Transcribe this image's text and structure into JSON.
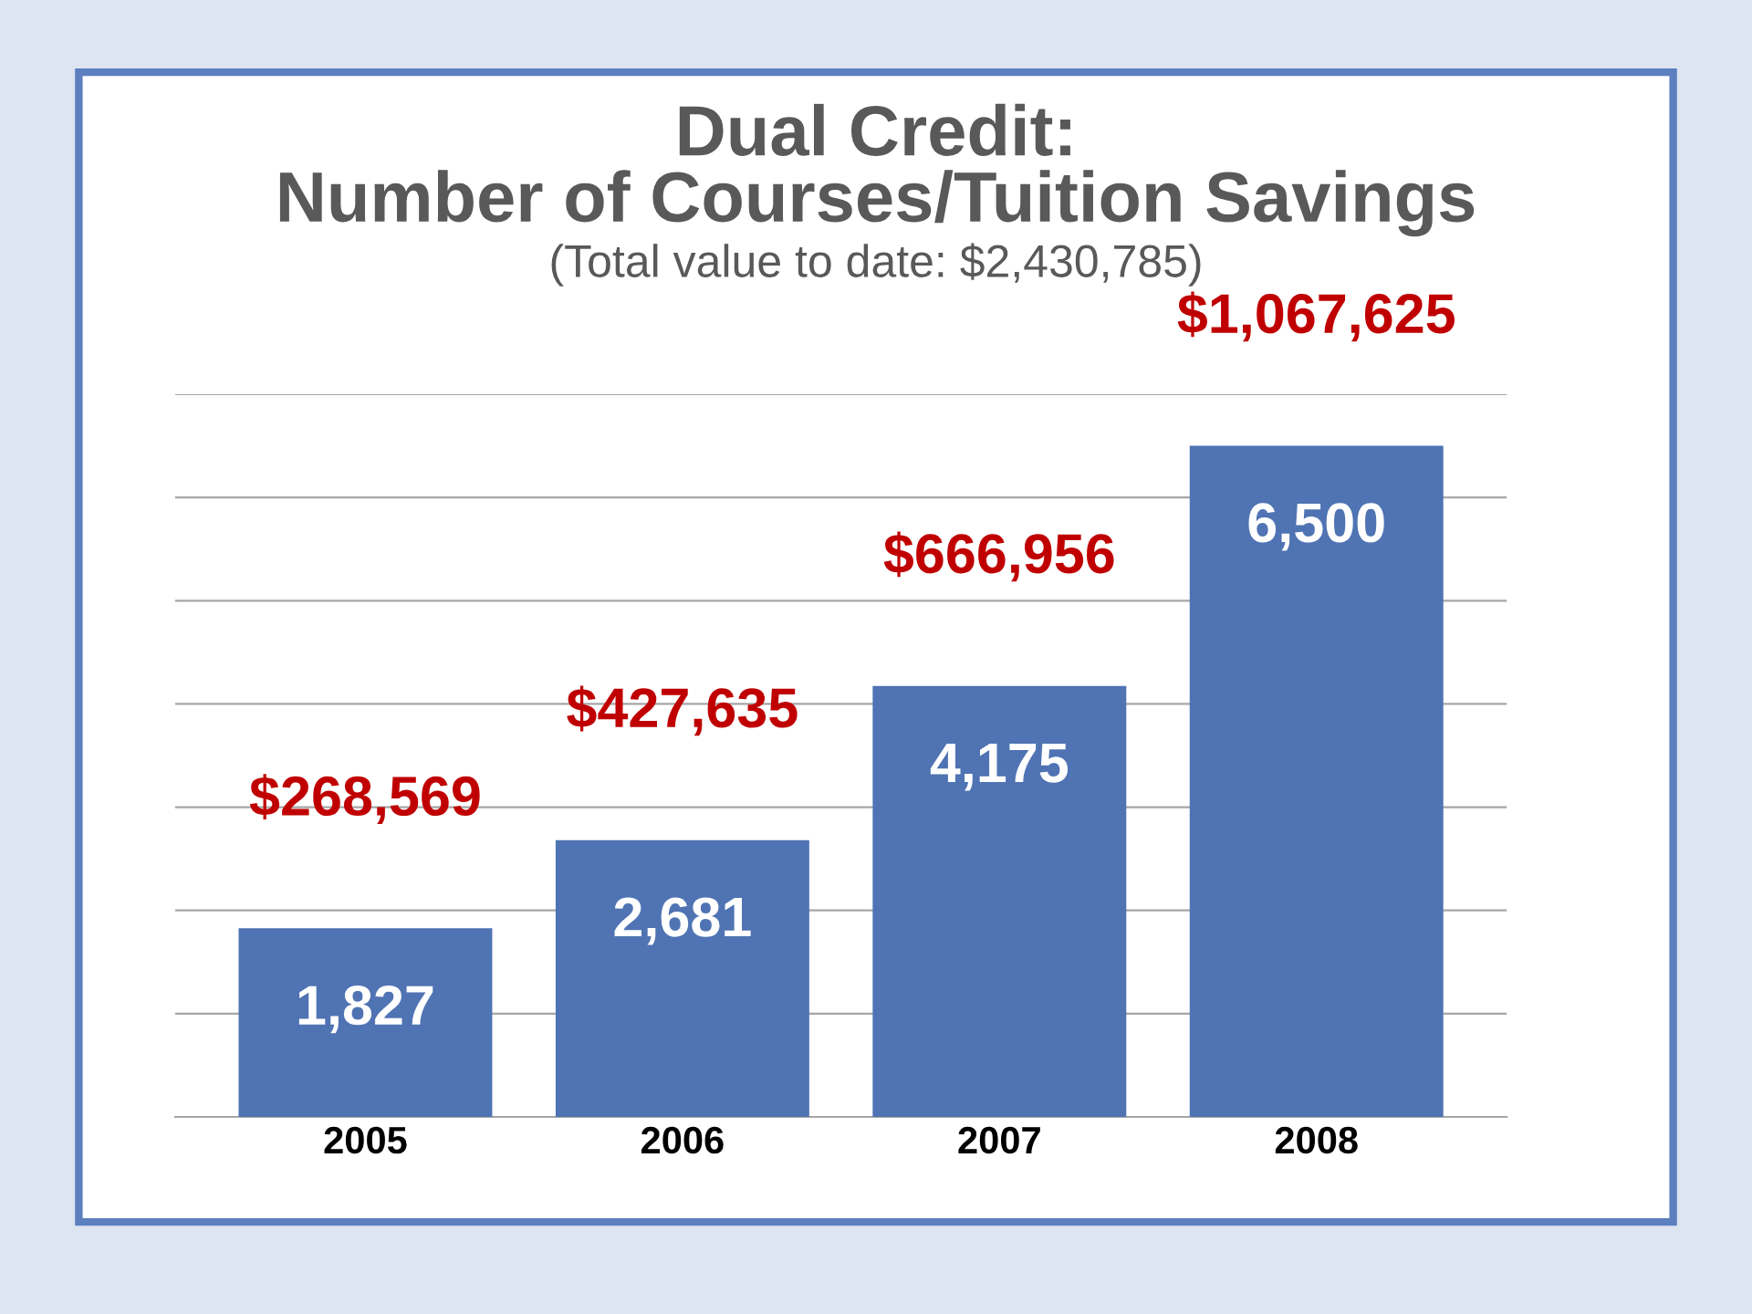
{
  "chart_data": {
    "type": "bar",
    "title": "Dual Credit:\nNumber of Courses/Tuition Savings",
    "subtitle": "(Total value to date: $2,430,785)",
    "categories": [
      "2005",
      "2006",
      "2007",
      "2008"
    ],
    "values": [
      1827,
      2681,
      4175,
      6500
    ],
    "color": "#4f73b3",
    "data_labels": true,
    "value_labels": [
      "1,827",
      "2,681",
      "4,175",
      "6,500"
    ],
    "annotations": [
      "$268,569",
      "$427,635",
      "$666,956",
      "$1,067,625"
    ],
    "ylim": [
      0,
      7000
    ],
    "yticks": [
      {
        "value": 0,
        "label": null
      },
      {
        "value": 1000,
        "label": null
      },
      {
        "value": 2000,
        "label": null
      },
      {
        "value": 3000,
        "label": null
      },
      {
        "value": 4000,
        "label": null
      },
      {
        "value": 5000,
        "label": null
      },
      {
        "value": 6000,
        "label": null
      },
      {
        "value": 7000,
        "label": null
      }
    ],
    "grid": "y",
    "tick_labels": "x"
  }
}
